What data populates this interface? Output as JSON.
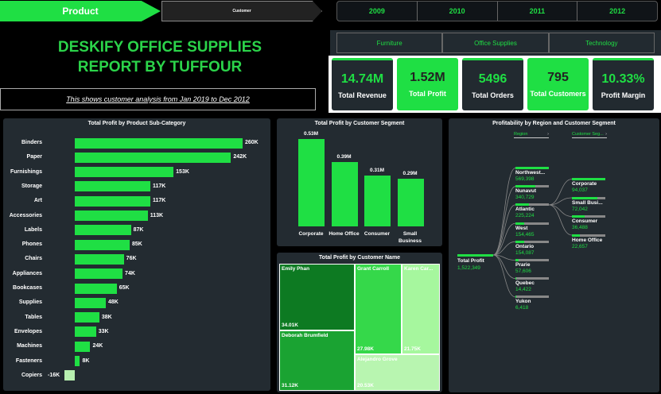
{
  "nav": {
    "active": "Product",
    "inactive": "Customer"
  },
  "years": [
    "2009",
    "2010",
    "2011",
    "2012"
  ],
  "title": {
    "line1": "DESKIFY OFFICE SUPPLIES",
    "line2": "REPORT BY TUFFOUR"
  },
  "subtitle": "This shows customer analysis from Jan 2019 to Dec 2012",
  "categories": [
    "Furniture",
    "Office Supplies",
    "Technology"
  ],
  "kpis": [
    {
      "value": "14.74M",
      "label": "Total Revenue",
      "style": "dark"
    },
    {
      "value": "1.52M",
      "label": "Total Profit",
      "style": "green"
    },
    {
      "value": "5496",
      "label": "Total Orders",
      "style": "dark"
    },
    {
      "value": "795",
      "label": "Total Customers",
      "style": "green"
    },
    {
      "value": "10.33%",
      "label": "Profit Margin",
      "style": "dark"
    }
  ],
  "colors": {
    "accent": "#1fdf44",
    "panel": "#232b31",
    "negative": "#b8f0b0"
  },
  "chart_data": [
    {
      "type": "bar",
      "orientation": "horizontal",
      "title": "Total Profit by Product Sub-Category",
      "categories": [
        "Binders",
        "Paper",
        "Furnishings",
        "Storage",
        "Art",
        "Accessories",
        "Labels",
        "Phones",
        "Chairs",
        "Appliances",
        "Bookcases",
        "Supplies",
        "Tables",
        "Envelopes",
        "Machines",
        "Fasteners",
        "Copiers"
      ],
      "values": [
        260,
        242,
        153,
        117,
        117,
        113,
        87,
        85,
        76,
        74,
        65,
        48,
        38,
        33,
        24,
        8,
        -16
      ],
      "labels": [
        "260K",
        "242K",
        "153K",
        "117K",
        "117K",
        "113K",
        "87K",
        "85K",
        "76K",
        "74K",
        "65K",
        "48K",
        "38K",
        "33K",
        "24K",
        "8K",
        "-16K"
      ],
      "unit": "K"
    },
    {
      "type": "bar",
      "title": "Total Profit by Customer Segment",
      "categories": [
        "Corporate",
        "Home Office",
        "Consumer",
        "Small Business"
      ],
      "values": [
        0.53,
        0.39,
        0.31,
        0.29
      ],
      "labels": [
        "0.53M",
        "0.39M",
        "0.31M",
        "0.29M"
      ],
      "unit": "M"
    },
    {
      "type": "table",
      "subtype": "treemap",
      "title": "Total Profit by Customer Name",
      "items": [
        {
          "name": "Emily Phan",
          "value": "34.01K"
        },
        {
          "name": "Deborah Brumfield",
          "value": "31.12K"
        },
        {
          "name": "Grant Carroll",
          "value": "27.98K"
        },
        {
          "name": "Karen Car...",
          "value": "21.75K"
        },
        {
          "name": "Alejandro Grove",
          "value": "20.53K"
        }
      ]
    },
    {
      "type": "table",
      "subtype": "decomposition-tree",
      "title": "Profitability by Region and Customer Segment",
      "root": {
        "name": "Total Profit",
        "value": "1,522,349"
      },
      "level1_header": "Region",
      "level2_header": "Customer Seg...",
      "regions": [
        {
          "name": "Northwest...",
          "value": "569,398",
          "fill": 1.0
        },
        {
          "name": "Nunavut",
          "value": "340,729",
          "fill": 0.6
        },
        {
          "name": "Atlantic",
          "value": "225,224",
          "fill": 0.4
        },
        {
          "name": "West",
          "value": "154,465",
          "fill": 0.27
        },
        {
          "name": "Ontario",
          "value": "154,087",
          "fill": 0.27
        },
        {
          "name": "Prarie",
          "value": "57,606",
          "fill": 0.1
        },
        {
          "name": "Quebec",
          "value": "14,422",
          "fill": 0.03
        },
        {
          "name": "Yukon",
          "value": "6,418",
          "fill": 0.01
        }
      ],
      "segments": [
        {
          "name": "Corporate",
          "value": "94,037",
          "fill": 1.0
        },
        {
          "name": "Small Busi...",
          "value": "72,042",
          "fill": 0.77
        },
        {
          "name": "Consumer",
          "value": "36,488",
          "fill": 0.39
        },
        {
          "name": "Home Office",
          "value": "22,657",
          "fill": 0.24
        }
      ]
    }
  ]
}
